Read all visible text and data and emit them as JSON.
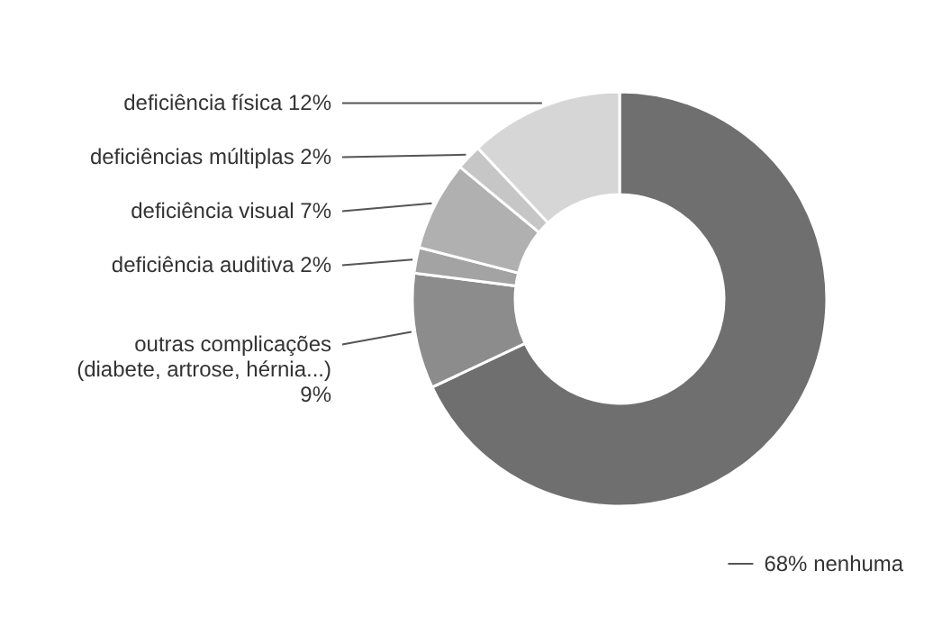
{
  "chart_data": {
    "type": "donut",
    "categories": [
      "68% nenhuma",
      "outras complicações\n(diabete, artrose, hérnia...)\n9%",
      "deficiência auditiva 2%",
      "deficiência visual 7%",
      "deficiências múltiplas 2%",
      "deficiência física 12%"
    ],
    "values": [
      68,
      9,
      2,
      7,
      2,
      12
    ],
    "colors": [
      "#6f6f6f",
      "#8c8c8c",
      "#a3a3a3",
      "#b0b0b0",
      "#c6c6c6",
      "#d6d6d6"
    ]
  }
}
